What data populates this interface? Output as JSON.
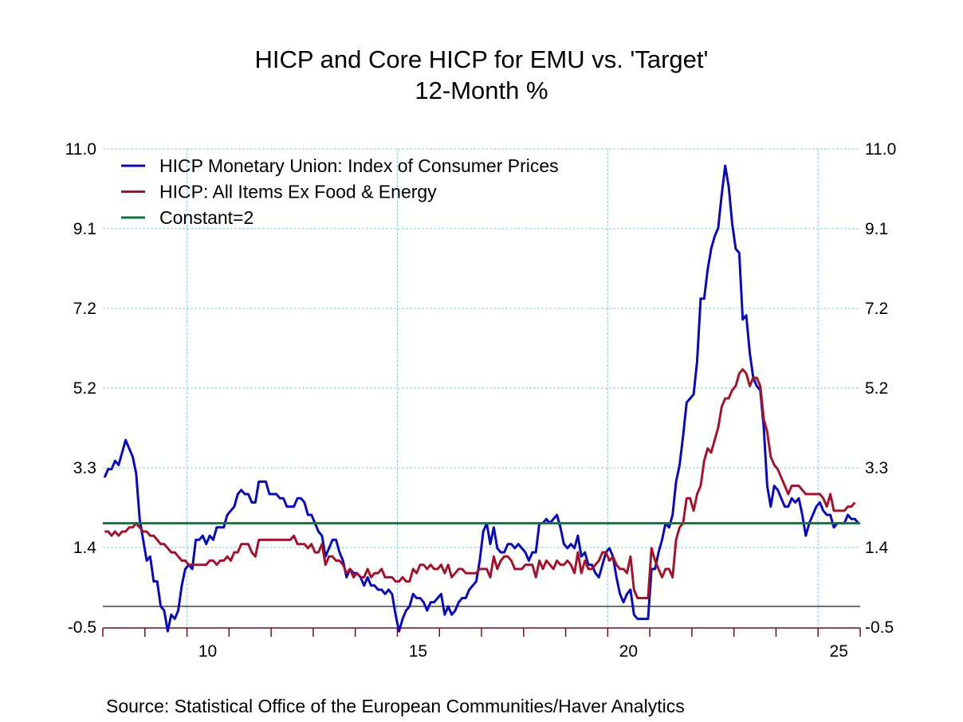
{
  "chart_data": {
    "type": "line",
    "title": "HICP and Core HICP for EMU vs. 'Target'",
    "subtitle": "12-Month %",
    "source": "Source:  Statistical Office of the European Communities/Haver Analytics",
    "frequency": "monthly",
    "xlim": [
      2008,
      2026
    ],
    "x_ticks": [
      {
        "year": 2010,
        "label": "10"
      },
      {
        "year": 2015,
        "label": "15"
      },
      {
        "year": 2020,
        "label": "20"
      },
      {
        "year": 2025,
        "label": "25"
      }
    ],
    "ylim": [
      -0.5,
      11.0
    ],
    "y_ticks": [
      {
        "value": 11.0,
        "label": "11.0"
      },
      {
        "value": 9.083,
        "label": "9.1"
      },
      {
        "value": 7.167,
        "label": "7.2"
      },
      {
        "value": 5.25,
        "label": "5.2"
      },
      {
        "value": 3.333,
        "label": "3.3"
      },
      {
        "value": 1.417,
        "label": "1.4"
      },
      {
        "value": -0.5,
        "label": "-0.5"
      }
    ],
    "y_axis_both_sides": true,
    "zero_line": true,
    "grid": true,
    "legend_position": "top-left",
    "series": [
      {
        "name": "HICP Monetary Union: Index of Consumer Prices",
        "color": "#0a0ab4",
        "values_by_year": {
          "2008": [
            3.1,
            3.3,
            3.3,
            3.5,
            3.4,
            3.7,
            4.0,
            3.8,
            3.6,
            3.2,
            2.1,
            1.6
          ],
          "2009": [
            1.1,
            1.2,
            0.6,
            0.6,
            0.0,
            -0.1,
            -0.6,
            -0.2,
            -0.3,
            -0.1,
            0.5,
            0.9
          ],
          "2010": [
            1.0,
            0.9,
            1.6,
            1.6,
            1.7,
            1.5,
            1.7,
            1.6,
            1.9,
            1.9,
            1.9,
            2.2
          ],
          "2011": [
            2.3,
            2.4,
            2.7,
            2.8,
            2.7,
            2.7,
            2.5,
            2.5,
            3.0,
            3.0,
            3.0,
            2.7
          ],
          "2012": [
            2.7,
            2.7,
            2.6,
            2.6,
            2.4,
            2.4,
            2.4,
            2.6,
            2.6,
            2.5,
            2.2,
            2.2
          ],
          "2013": [
            2.0,
            1.8,
            1.7,
            1.2,
            1.4,
            1.6,
            1.6,
            1.3,
            1.1,
            0.7,
            0.9,
            0.8
          ],
          "2014": [
            0.8,
            0.7,
            0.5,
            0.7,
            0.5,
            0.5,
            0.4,
            0.4,
            0.3,
            0.4,
            0.3,
            -0.2
          ],
          "2015": [
            -0.6,
            -0.3,
            -0.1,
            0.0,
            0.3,
            0.2,
            0.2,
            0.1,
            -0.1,
            0.1,
            0.1,
            0.2
          ],
          "2016": [
            0.3,
            -0.2,
            0.0,
            -0.2,
            -0.1,
            0.1,
            0.2,
            0.2,
            0.4,
            0.5,
            0.6,
            1.1
          ],
          "2017": [
            1.8,
            2.0,
            1.5,
            1.9,
            1.4,
            1.3,
            1.3,
            1.5,
            1.5,
            1.4,
            1.5,
            1.4
          ],
          "2018": [
            1.3,
            1.1,
            1.3,
            1.3,
            2.0,
            2.0,
            2.1,
            2.0,
            2.1,
            2.2,
            1.9,
            1.5
          ],
          "2019": [
            1.4,
            1.5,
            1.4,
            1.7,
            1.2,
            1.3,
            1.0,
            1.0,
            0.8,
            0.7,
            1.0,
            1.3
          ],
          "2020": [
            1.4,
            1.2,
            0.7,
            0.3,
            0.1,
            0.3,
            0.4,
            -0.2,
            -0.3,
            -0.3,
            -0.3,
            -0.3
          ],
          "2021": [
            0.9,
            0.9,
            1.3,
            1.6,
            2.0,
            1.9,
            2.2,
            3.0,
            3.4,
            4.1,
            4.9,
            5.0
          ],
          "2022": [
            5.1,
            5.9,
            7.4,
            7.4,
            8.1,
            8.6,
            8.9,
            9.1,
            9.9,
            10.6,
            10.1,
            9.2
          ],
          "2023": [
            8.6,
            8.5,
            6.9,
            7.0,
            6.1,
            5.5,
            5.3,
            5.2,
            4.3,
            2.9,
            2.4,
            2.9
          ],
          "2024": [
            2.8,
            2.6,
            2.4,
            2.4,
            2.6,
            2.5,
            2.6,
            2.2,
            1.7,
            2.0,
            2.2,
            2.4
          ],
          "2025": [
            2.5,
            2.3,
            2.2,
            2.2,
            1.9,
            2.0,
            2.0,
            2.0,
            2.2,
            2.1,
            2.1,
            2.0
          ]
        }
      },
      {
        "name": "HICP: All Items Ex Food & Energy",
        "color": "#a0142d",
        "values_by_year": {
          "2008": [
            1.8,
            1.8,
            1.7,
            1.8,
            1.7,
            1.8,
            1.8,
            1.9,
            1.9,
            2.0,
            1.9,
            1.8
          ],
          "2009": [
            1.8,
            1.7,
            1.7,
            1.6,
            1.5,
            1.5,
            1.4,
            1.3,
            1.3,
            1.2,
            1.1,
            1.1
          ],
          "2010": [
            1.0,
            1.0,
            1.0,
            1.0,
            1.0,
            1.0,
            1.1,
            1.1,
            1.0,
            1.1,
            1.1,
            1.2
          ],
          "2011": [
            1.1,
            1.3,
            1.3,
            1.5,
            1.5,
            1.5,
            1.3,
            1.2,
            1.6,
            1.6,
            1.6,
            1.6
          ],
          "2012": [
            1.6,
            1.6,
            1.6,
            1.6,
            1.6,
            1.6,
            1.7,
            1.5,
            1.5,
            1.5,
            1.4,
            1.5
          ],
          "2013": [
            1.3,
            1.3,
            1.5,
            1.0,
            1.2,
            1.2,
            1.1,
            1.1,
            1.0,
            0.8,
            0.9,
            0.7
          ],
          "2014": [
            0.8,
            0.7,
            0.7,
            0.9,
            0.7,
            0.8,
            0.8,
            0.9,
            0.7,
            0.7,
            0.7,
            0.6
          ],
          "2015": [
            0.6,
            0.7,
            0.6,
            0.6,
            0.9,
            0.8,
            1.0,
            1.0,
            0.9,
            1.0,
            0.9,
            0.9
          ],
          "2016": [
            1.0,
            0.8,
            1.0,
            0.7,
            0.8,
            0.9,
            0.9,
            0.8,
            0.8,
            0.8,
            0.8,
            0.9
          ],
          "2017": [
            0.9,
            0.9,
            0.7,
            1.2,
            0.9,
            1.1,
            1.2,
            1.2,
            1.1,
            0.9,
            0.9,
            0.9
          ],
          "2018": [
            1.0,
            1.0,
            1.0,
            0.7,
            1.1,
            0.9,
            1.1,
            1.0,
            0.9,
            1.1,
            1.0,
            1.0
          ],
          "2019": [
            1.1,
            1.0,
            0.8,
            1.3,
            0.8,
            1.1,
            0.9,
            0.9,
            1.0,
            1.1,
            1.3,
            1.3
          ],
          "2020": [
            1.1,
            1.2,
            1.0,
            0.9,
            0.9,
            0.8,
            1.2,
            0.4,
            0.2,
            0.2,
            0.2,
            0.2
          ],
          "2021": [
            1.4,
            1.1,
            0.9,
            0.7,
            0.9,
            0.9,
            0.7,
            1.6,
            1.9,
            2.0,
            2.6,
            2.6
          ],
          "2022": [
            2.3,
            2.7,
            2.9,
            3.5,
            3.8,
            3.7,
            4.0,
            4.3,
            4.8,
            5.0,
            5.0,
            5.2
          ],
          "2023": [
            5.3,
            5.6,
            5.7,
            5.6,
            5.3,
            5.5,
            5.5,
            5.3,
            4.5,
            4.2,
            3.6,
            3.4
          ],
          "2024": [
            3.3,
            3.1,
            2.9,
            2.7,
            2.9,
            2.9,
            2.9,
            2.8,
            2.7,
            2.7,
            2.7,
            2.7
          ],
          "2025": [
            2.7,
            2.6,
            2.4,
            2.7,
            2.3,
            2.3,
            2.3,
            2.3,
            2.4,
            2.4,
            2.5
          ]
        }
      },
      {
        "name": "Constant=2",
        "color": "#127542",
        "constant": 2
      }
    ],
    "colors": {
      "grid": "#8cc4dc",
      "axis": "#6b0f1f",
      "zero_line": "#000000"
    }
  }
}
